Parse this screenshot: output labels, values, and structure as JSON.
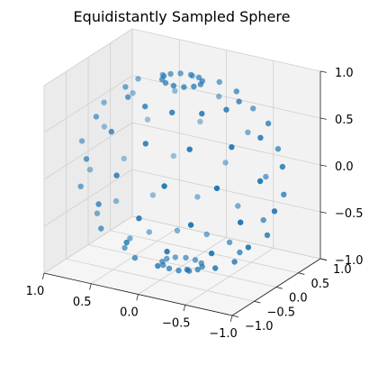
{
  "chart_data": {
    "type": "scatter3d",
    "title": "Equidistantly Sampled Sphere",
    "xlabel": "",
    "ylabel": "",
    "zlabel": "",
    "xlim": [
      -1.0,
      1.0
    ],
    "ylim": [
      -1.0,
      1.0
    ],
    "zlim": [
      -1.0,
      1.0
    ],
    "x_ticks": [
      "−1.0",
      "−0.5",
      "0.0",
      "0.5",
      "1.0"
    ],
    "y_ticks": [
      "−1.0",
      "−0.5",
      "0.0",
      "0.5",
      "1.0"
    ],
    "z_ticks": [
      "−1.0",
      "−0.5",
      "0.0",
      "0.5",
      "1.0"
    ],
    "grid": true,
    "marker_color": "#1f77b4",
    "pane_colors": {
      "left": "#ebebeb",
      "back": "#f2f2f2",
      "floor": "#f5f5f5"
    },
    "sampling": {
      "n_polar": 8,
      "n_azimuth": 12
    }
  }
}
